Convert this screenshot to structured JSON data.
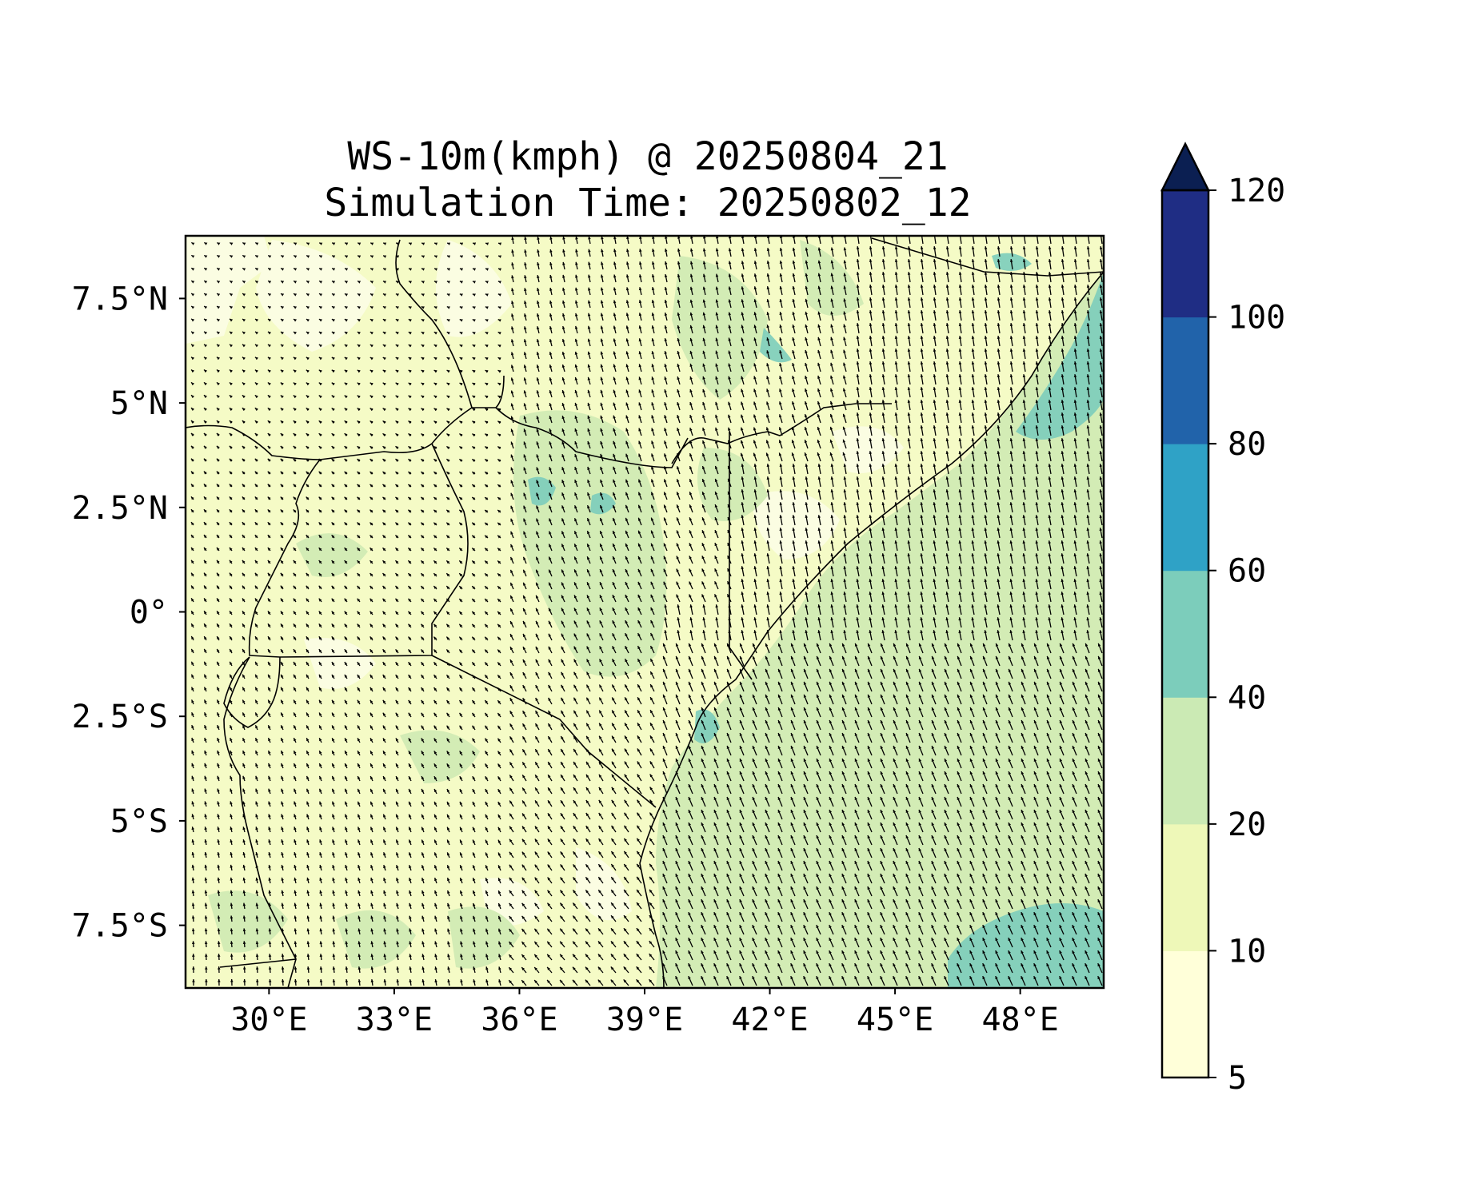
{
  "title": {
    "line1": "WS-10m(kmph) @ 20250804_21",
    "line2": "Simulation Time: 20250802_12"
  },
  "map": {
    "lon_range": [
      28,
      50
    ],
    "lat_range": [
      -9,
      9
    ],
    "x_ticks": [
      {
        "value": 30,
        "label": "30°E"
      },
      {
        "value": 33,
        "label": "33°E"
      },
      {
        "value": 36,
        "label": "36°E"
      },
      {
        "value": 39,
        "label": "39°E"
      },
      {
        "value": 42,
        "label": "42°E"
      },
      {
        "value": 45,
        "label": "45°E"
      },
      {
        "value": 48,
        "label": "48°E"
      }
    ],
    "y_ticks": [
      {
        "value": 7.5,
        "label": "7.5°N"
      },
      {
        "value": 5,
        "label": "5°N"
      },
      {
        "value": 2.5,
        "label": "2.5°N"
      },
      {
        "value": 0,
        "label": "0°"
      },
      {
        "value": -2.5,
        "label": "2.5°S"
      },
      {
        "value": -5,
        "label": "5°S"
      },
      {
        "value": -7.5,
        "label": "7.5°S"
      }
    ],
    "layers": [
      "wind-speed-fill",
      "wind-vector-arrows",
      "country-borders",
      "coastline"
    ]
  },
  "colorbar": {
    "levels": [
      5,
      10,
      20,
      40,
      60,
      80,
      100,
      120
    ],
    "labels": [
      "5",
      "10",
      "20",
      "40",
      "60",
      "80",
      "100",
      "120"
    ],
    "colors": [
      "#ffffd9",
      "#eef8b8",
      "#cbeab4",
      "#7ccdbb",
      "#2fa2c6",
      "#2163aa",
      "#1f2d84"
    ],
    "extend_color": "#0b1f52",
    "extend": "max"
  },
  "colors": {
    "background": "#ffffff",
    "land_base": "#f5fbc6",
    "light_zone": "#fbfde2",
    "moderate_zone": "#d3ecb5",
    "strong_zone": "#7ccdbb",
    "coast_line": "#000000",
    "arrows": "#000000"
  }
}
